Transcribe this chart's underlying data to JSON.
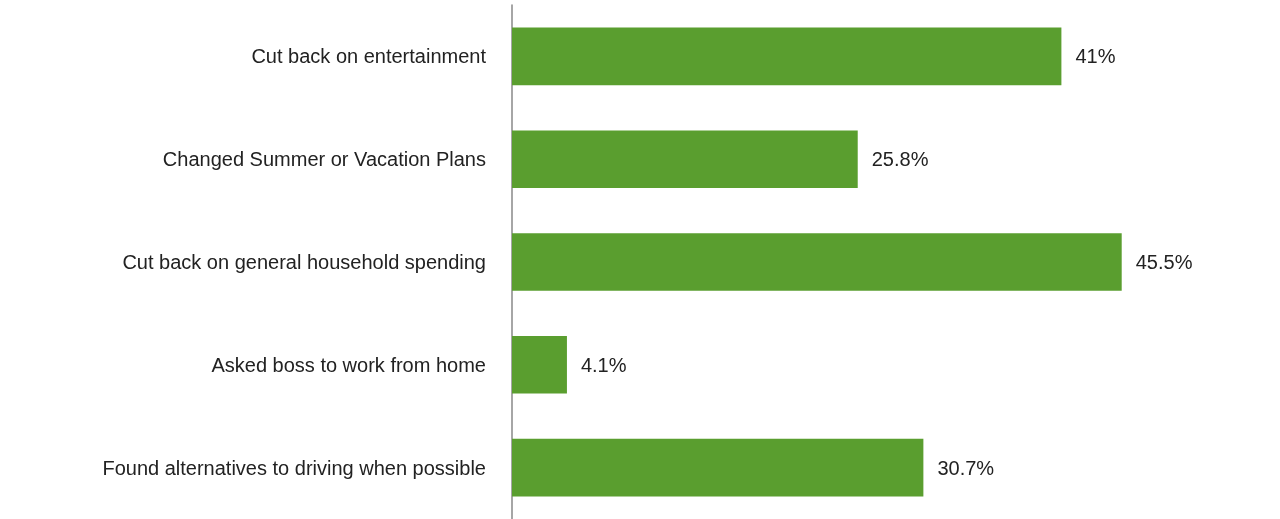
{
  "chart_data": {
    "type": "bar",
    "orientation": "horizontal",
    "categories": [
      "Cut back on entertainment",
      "Changed Summer or Vacation Plans",
      "Cut back on general household spending",
      "Asked boss to work from home",
      "Found alternatives to driving when possible"
    ],
    "values": [
      41,
      25.8,
      45.5,
      4.1,
      30.7
    ],
    "value_labels": [
      "41%",
      "25.8%",
      "45.5%",
      "4.1%",
      "30.7%"
    ],
    "color": "#5a9e2f"
  }
}
